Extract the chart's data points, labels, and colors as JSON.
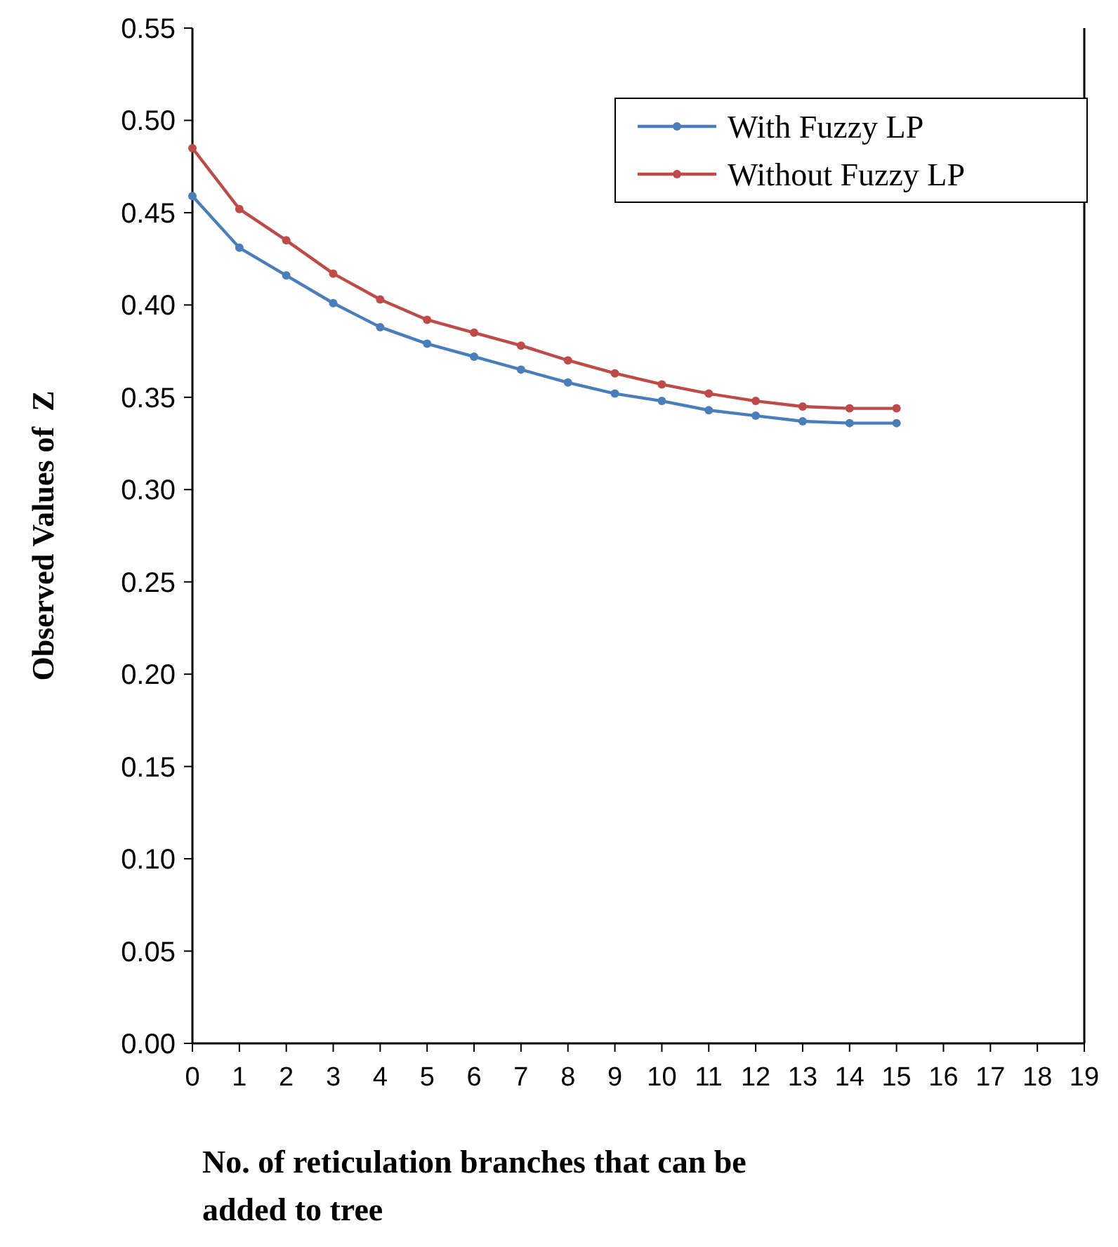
{
  "chart_data": {
    "type": "line",
    "xlabel": "No. of reticulation branches that can be added to tree",
    "ylabel": "Observed Values of  Z",
    "x": [
      0,
      1,
      2,
      3,
      4,
      5,
      6,
      7,
      8,
      9,
      10,
      11,
      12,
      13,
      14,
      15
    ],
    "xlim": [
      0,
      19
    ],
    "xticks": [
      0,
      1,
      2,
      3,
      4,
      5,
      6,
      7,
      8,
      9,
      10,
      11,
      12,
      13,
      14,
      15,
      16,
      17,
      18,
      19
    ],
    "ylim": [
      0,
      0.55
    ],
    "yticks": [
      {
        "value": 0,
        "label": "0.00"
      },
      {
        "value": 0.05,
        "label": "0.05"
      },
      {
        "value": 0.1,
        "label": "0.10"
      },
      {
        "value": 0.15,
        "label": "0.15"
      },
      {
        "value": 0.2,
        "label": "0.20"
      },
      {
        "value": 0.25,
        "label": "0.25"
      },
      {
        "value": 0.3,
        "label": "0.30"
      },
      {
        "value": 0.35,
        "label": "0.35"
      },
      {
        "value": 0.4,
        "label": "0.40"
      },
      {
        "value": 0.45,
        "label": "0.45"
      },
      {
        "value": 0.5,
        "label": "0.50"
      },
      {
        "value": 0.55,
        "label": "0.55"
      }
    ],
    "series": [
      {
        "name": "With Fuzzy LP",
        "color": "#4a7ebb",
        "values": [
          0.459,
          0.431,
          0.416,
          0.401,
          0.388,
          0.379,
          0.372,
          0.365,
          0.358,
          0.352,
          0.348,
          0.343,
          0.34,
          0.337,
          0.336,
          0.336
        ]
      },
      {
        "name": "Without Fuzzy LP",
        "color": "#be4b48",
        "values": [
          0.485,
          0.452,
          0.435,
          0.417,
          0.403,
          0.392,
          0.385,
          0.378,
          0.37,
          0.363,
          0.357,
          0.352,
          0.348,
          0.345,
          0.344,
          0.344
        ]
      }
    ],
    "grid": false,
    "legend": "top right",
    "marker": "circle",
    "line_style": "solid"
  }
}
